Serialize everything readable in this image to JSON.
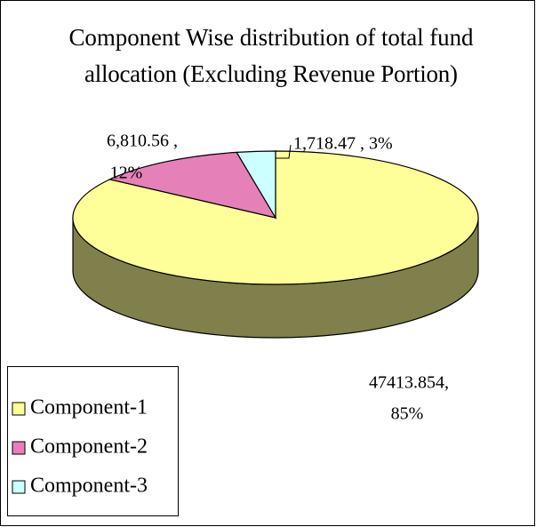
{
  "chart_data": {
    "type": "pie3d",
    "title_lines": [
      "Component Wise distribution of total fund",
      "allocation (Excluding Revenue Portion)"
    ],
    "categories": [
      "Component-1",
      "Component-2",
      "Component-3"
    ],
    "values": [
      47413.854,
      6810.56,
      1718.47
    ],
    "value_labels": [
      "47413.854,",
      "6,810.56 ,",
      "1,718.47 ,"
    ],
    "percent_labels": [
      "85%",
      "12%",
      "3%"
    ],
    "colors": [
      "#ffff99",
      "#e680b8",
      "#ccffff"
    ],
    "legend": "bottom-left"
  }
}
